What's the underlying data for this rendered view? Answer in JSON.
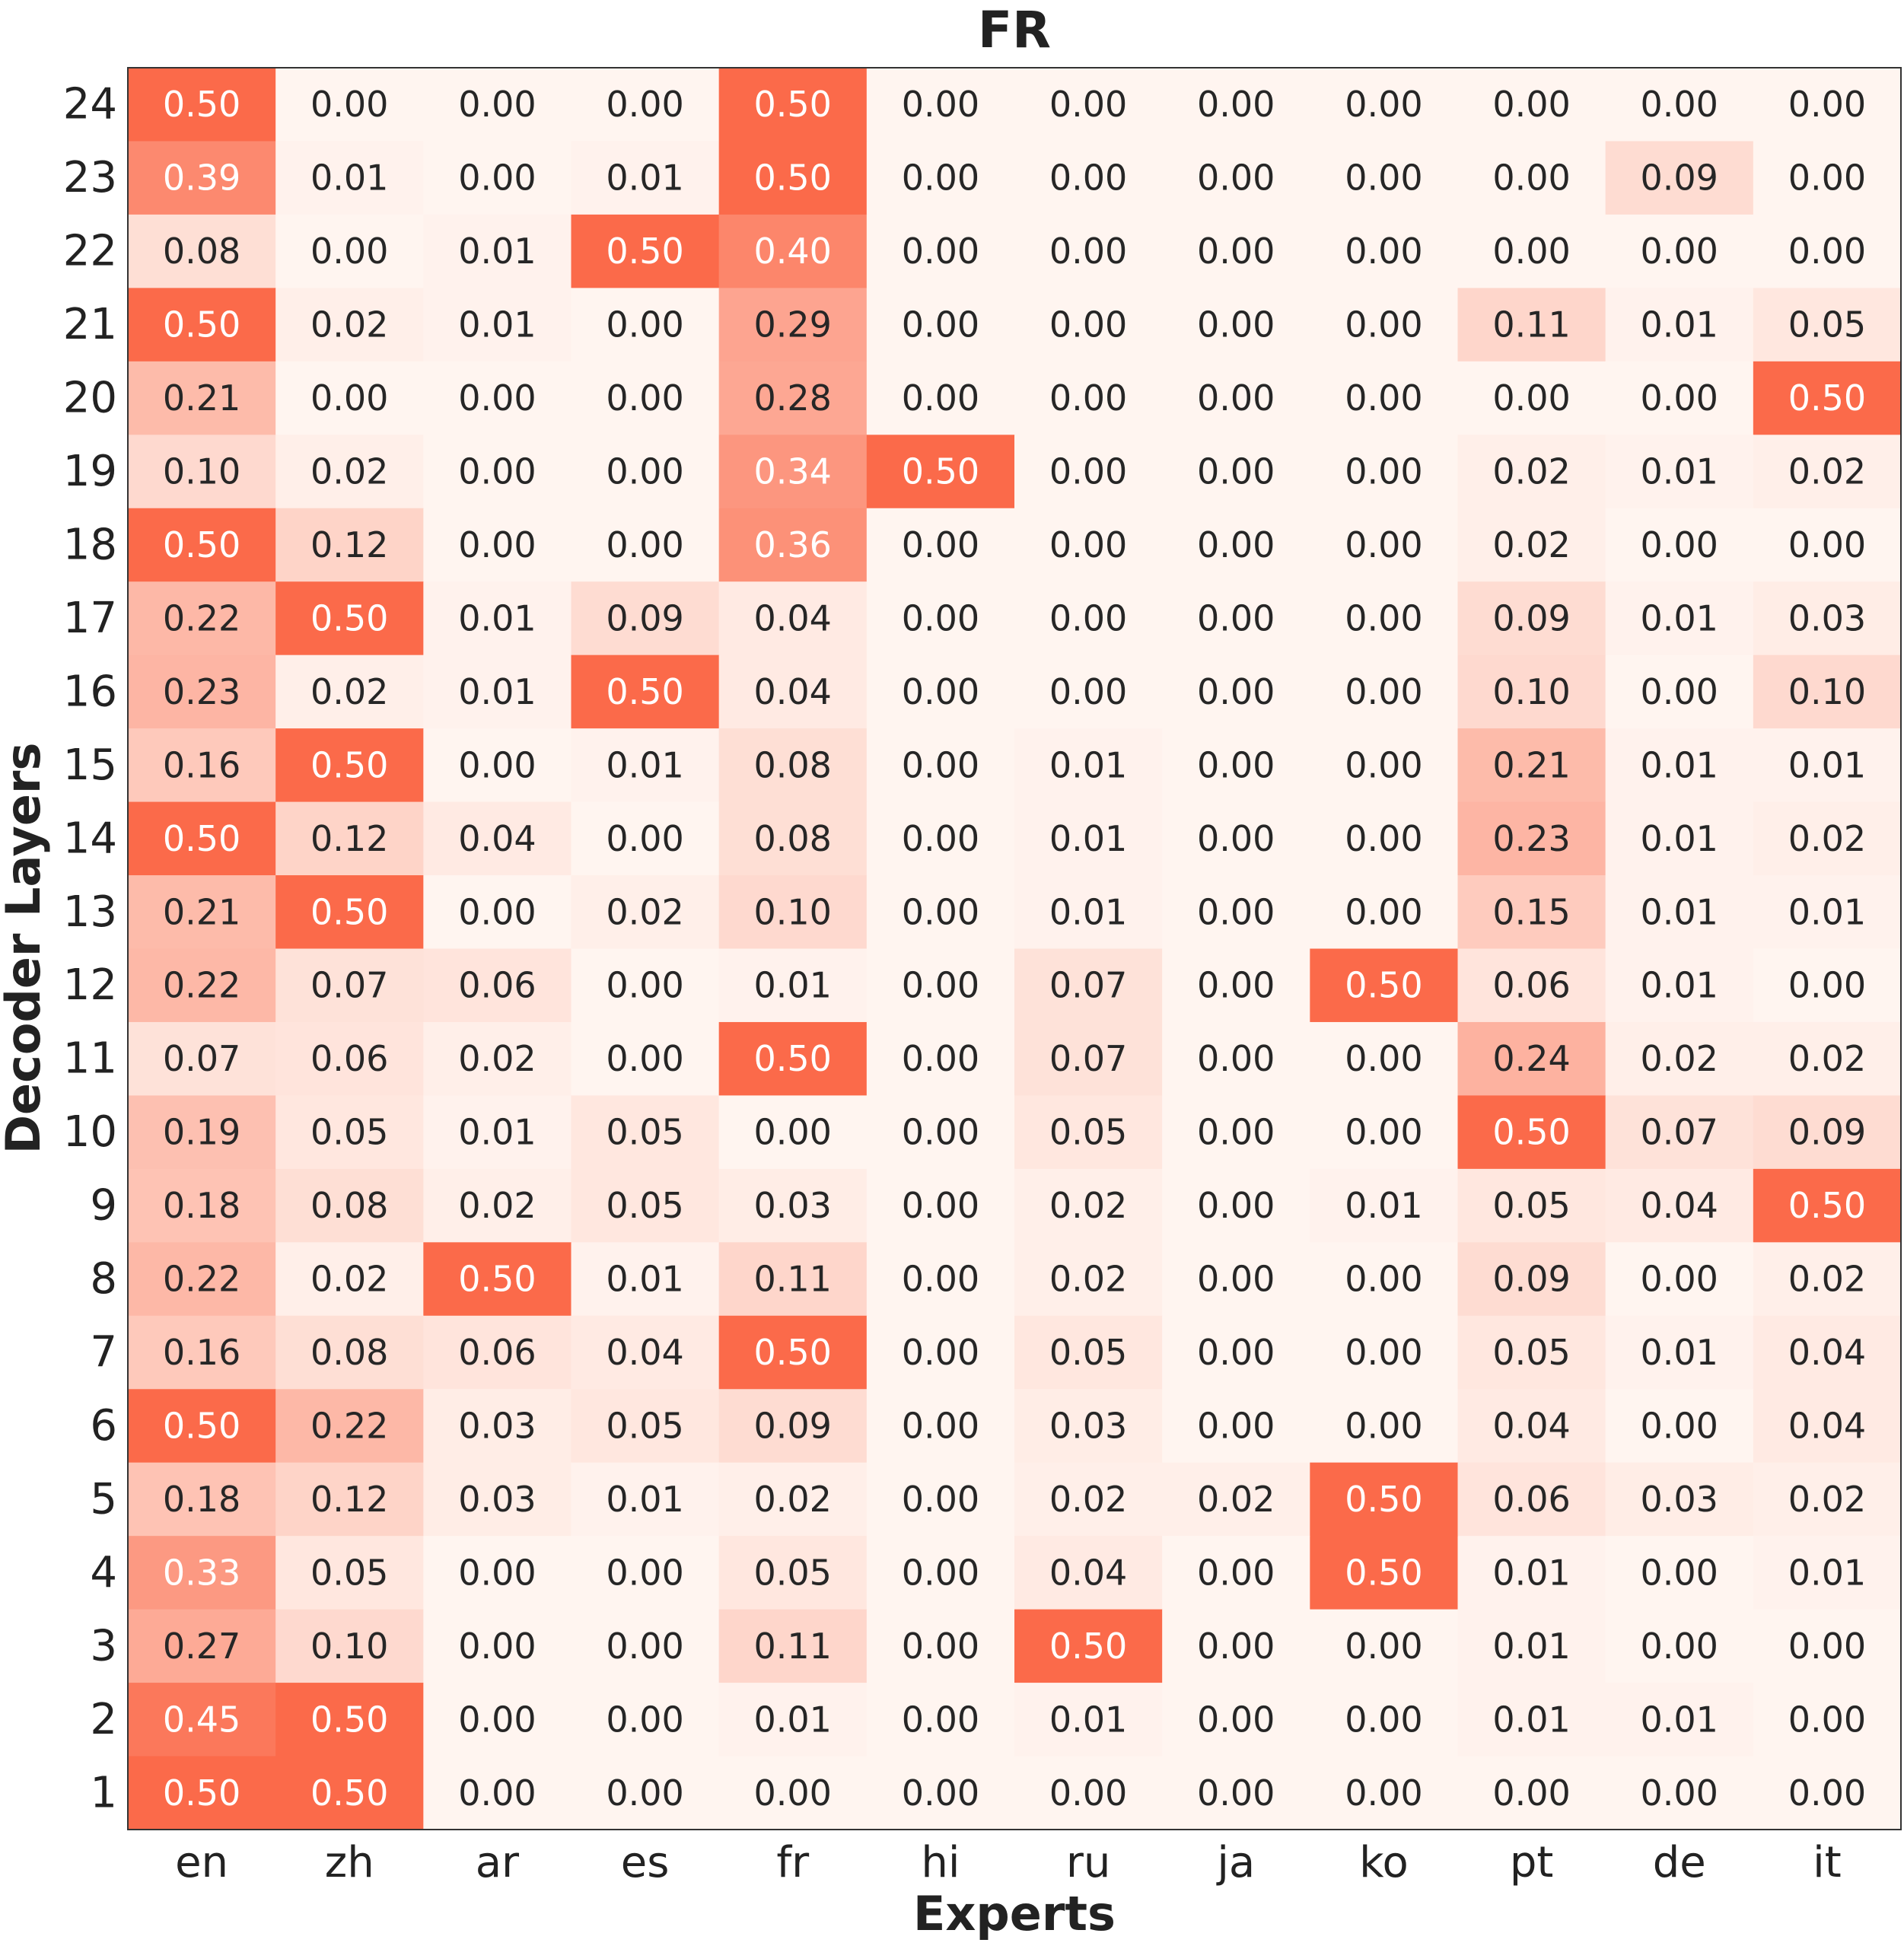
{
  "chart_data": {
    "type": "heatmap",
    "title": "FR",
    "xlabel": "Experts",
    "ylabel": "Decoder Layers",
    "x_categories": [
      "en",
      "zh",
      "ar",
      "es",
      "fr",
      "hi",
      "ru",
      "ja",
      "ko",
      "pt",
      "de",
      "it"
    ],
    "y_categories": [
      "24",
      "23",
      "22",
      "21",
      "20",
      "19",
      "18",
      "17",
      "16",
      "15",
      "14",
      "13",
      "12",
      "11",
      "10",
      "9",
      "8",
      "7",
      "6",
      "5",
      "4",
      "3",
      "2",
      "1"
    ],
    "value_range": [
      0,
      0.5
    ],
    "colors": {
      "low": "#fff5f0",
      "high": "#fb6a4a",
      "text_dark": "#262626",
      "text_light": "#ffffff"
    },
    "values": [
      [
        0.5,
        0.0,
        0.0,
        0.0,
        0.5,
        0.0,
        0.0,
        0.0,
        0.0,
        0.0,
        0.0,
        0.0
      ],
      [
        0.39,
        0.01,
        0.0,
        0.01,
        0.5,
        0.0,
        0.0,
        0.0,
        0.0,
        0.0,
        0.09,
        0.0
      ],
      [
        0.08,
        0.0,
        0.01,
        0.5,
        0.4,
        0.0,
        0.0,
        0.0,
        0.0,
        0.0,
        0.0,
        0.0
      ],
      [
        0.5,
        0.02,
        0.01,
        0.0,
        0.29,
        0.0,
        0.0,
        0.0,
        0.0,
        0.11,
        0.01,
        0.05
      ],
      [
        0.21,
        0.0,
        0.0,
        0.0,
        0.28,
        0.0,
        0.0,
        0.0,
        0.0,
        0.0,
        0.0,
        0.5
      ],
      [
        0.1,
        0.02,
        0.0,
        0.0,
        0.34,
        0.5,
        0.0,
        0.0,
        0.0,
        0.02,
        0.01,
        0.02
      ],
      [
        0.5,
        0.12,
        0.0,
        0.0,
        0.36,
        0.0,
        0.0,
        0.0,
        0.0,
        0.02,
        0.0,
        0.0
      ],
      [
        0.22,
        0.5,
        0.01,
        0.09,
        0.04,
        0.0,
        0.0,
        0.0,
        0.0,
        0.09,
        0.01,
        0.03
      ],
      [
        0.23,
        0.02,
        0.01,
        0.5,
        0.04,
        0.0,
        0.0,
        0.0,
        0.0,
        0.1,
        0.0,
        0.1
      ],
      [
        0.16,
        0.5,
        0.0,
        0.01,
        0.08,
        0.0,
        0.01,
        0.0,
        0.0,
        0.21,
        0.01,
        0.01
      ],
      [
        0.5,
        0.12,
        0.04,
        0.0,
        0.08,
        0.0,
        0.01,
        0.0,
        0.0,
        0.23,
        0.01,
        0.02
      ],
      [
        0.21,
        0.5,
        0.0,
        0.02,
        0.1,
        0.0,
        0.01,
        0.0,
        0.0,
        0.15,
        0.01,
        0.01
      ],
      [
        0.22,
        0.07,
        0.06,
        0.0,
        0.01,
        0.0,
        0.07,
        0.0,
        0.5,
        0.06,
        0.01,
        0.0
      ],
      [
        0.07,
        0.06,
        0.02,
        0.0,
        0.5,
        0.0,
        0.07,
        0.0,
        0.0,
        0.24,
        0.02,
        0.02
      ],
      [
        0.19,
        0.05,
        0.01,
        0.05,
        0.0,
        0.0,
        0.05,
        0.0,
        0.0,
        0.5,
        0.07,
        0.09
      ],
      [
        0.18,
        0.08,
        0.02,
        0.05,
        0.03,
        0.0,
        0.02,
        0.0,
        0.01,
        0.05,
        0.04,
        0.5
      ],
      [
        0.22,
        0.02,
        0.5,
        0.01,
        0.11,
        0.0,
        0.02,
        0.0,
        0.0,
        0.09,
        0.0,
        0.02
      ],
      [
        0.16,
        0.08,
        0.06,
        0.04,
        0.5,
        0.0,
        0.05,
        0.0,
        0.0,
        0.05,
        0.01,
        0.04
      ],
      [
        0.5,
        0.22,
        0.03,
        0.05,
        0.09,
        0.0,
        0.03,
        0.0,
        0.0,
        0.04,
        0.0,
        0.04
      ],
      [
        0.18,
        0.12,
        0.03,
        0.01,
        0.02,
        0.0,
        0.02,
        0.02,
        0.5,
        0.06,
        0.03,
        0.02
      ],
      [
        0.33,
        0.05,
        0.0,
        0.0,
        0.05,
        0.0,
        0.04,
        0.0,
        0.5,
        0.01,
        0.0,
        0.01
      ],
      [
        0.27,
        0.1,
        0.0,
        0.0,
        0.11,
        0.0,
        0.5,
        0.0,
        0.0,
        0.01,
        0.0,
        0.0
      ],
      [
        0.45,
        0.5,
        0.0,
        0.0,
        0.01,
        0.0,
        0.01,
        0.0,
        0.0,
        0.01,
        0.01,
        0.0
      ],
      [
        0.5,
        0.5,
        0.0,
        0.0,
        0.0,
        0.0,
        0.0,
        0.0,
        0.0,
        0.0,
        0.0,
        0.0
      ]
    ]
  }
}
